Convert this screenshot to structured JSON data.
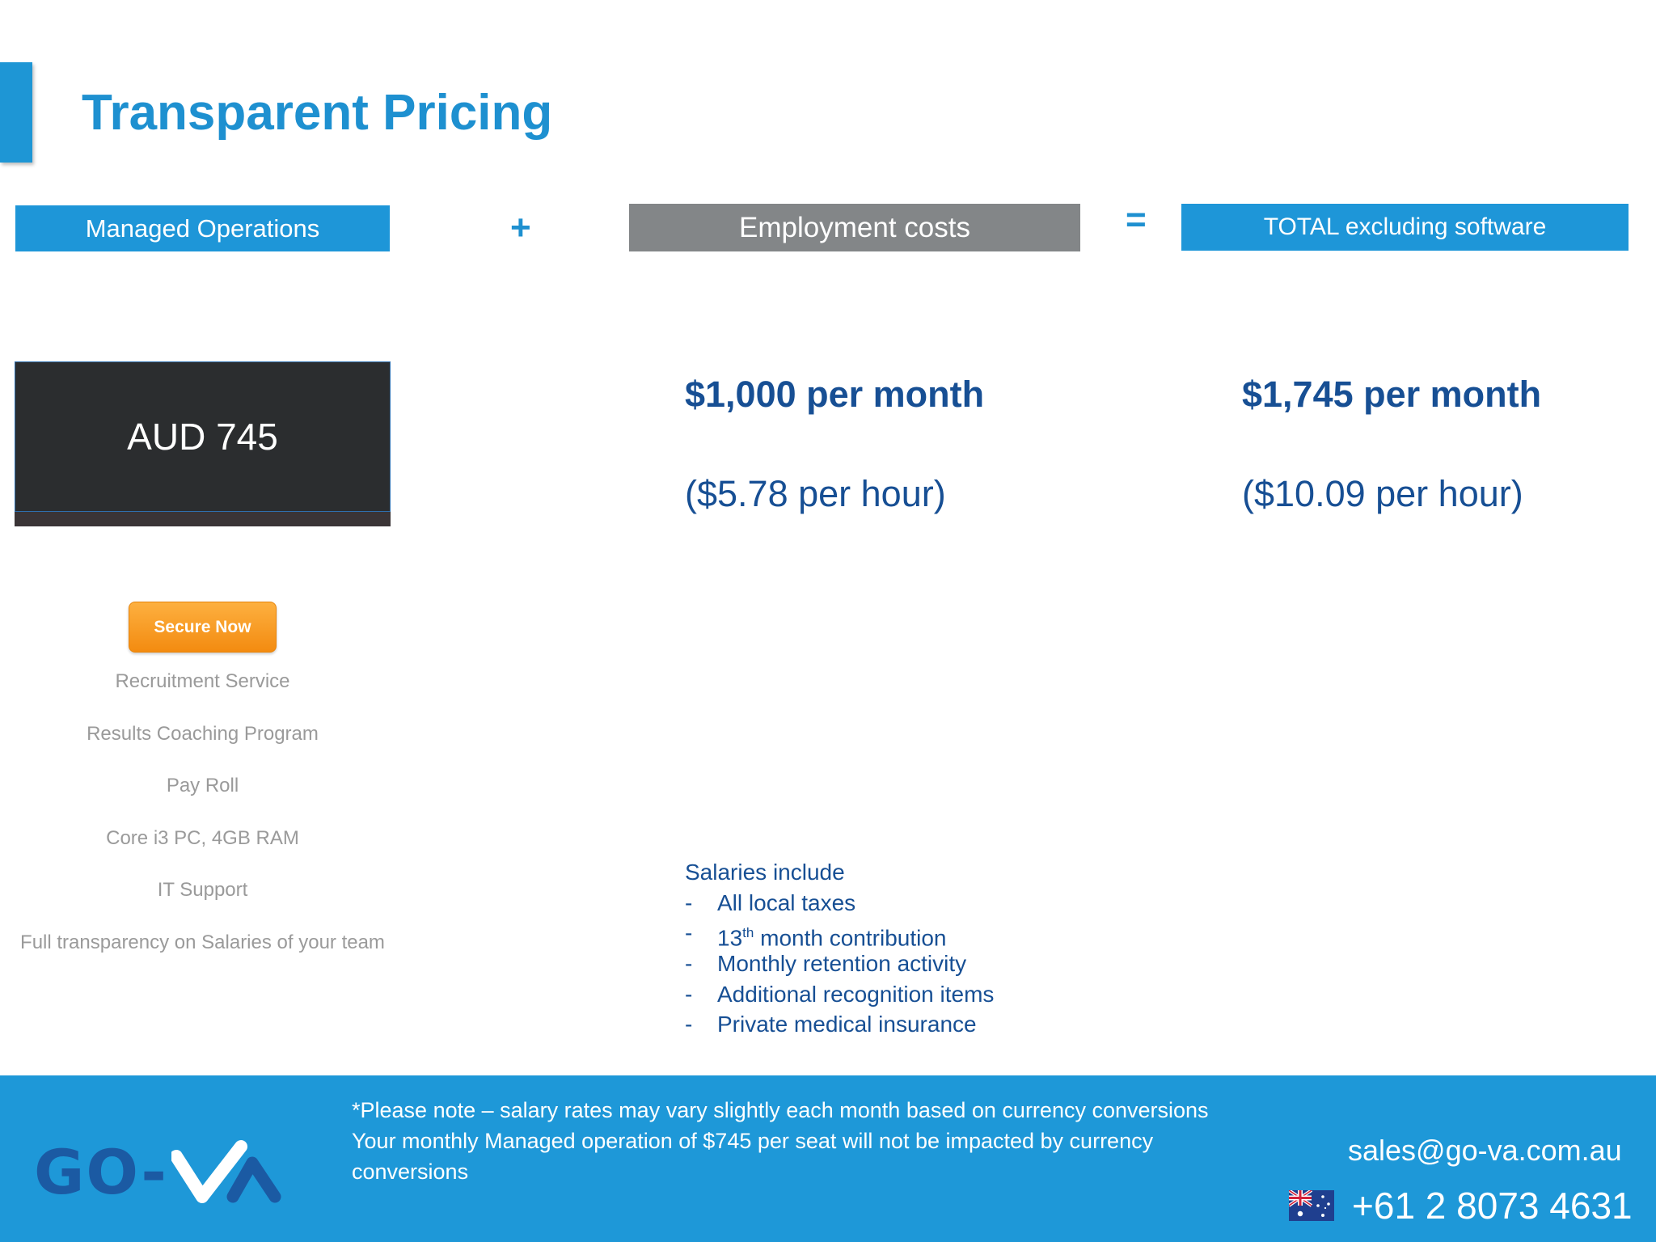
{
  "page": {
    "title": "Transparent Pricing"
  },
  "headers": {
    "managed": "Managed Operations",
    "plus": "+",
    "employment": "Employment costs",
    "equals": "=",
    "total": "TOTAL excluding software"
  },
  "managed_ops": {
    "price": "AUD 745",
    "cta": "Secure Now",
    "features": [
      "Recruitment Service",
      "Results Coaching Program",
      "Pay Roll",
      "Core i3 PC, 4GB RAM",
      "IT Support",
      "Full transparency on Salaries of your team"
    ]
  },
  "employment": {
    "monthly": "$1,000 per month",
    "hourly": "($5.78 per hour)"
  },
  "total": {
    "monthly": "$1,745 per month",
    "hourly": "($10.09 per hour)"
  },
  "salaries": {
    "heading": "Salaries include",
    "items": {
      "taxes": "All local taxes",
      "thirteenth_number": "13",
      "thirteenth_suffix": "th",
      "thirteenth_rest": " month contribution",
      "retention": "Monthly retention activity",
      "recognition": "Additional recognition items",
      "medical": "Private medical insurance"
    }
  },
  "footer": {
    "note_line1": "*Please note – salary rates may vary slightly each month based on currency conversions",
    "note_line2": "Your monthly Managed operation of $745 per seat will not be impacted by currency conversions",
    "logo_text": "GO-VA",
    "logo_prefix": "GO-",
    "email": "sales@go-va.com.au",
    "phone": "+61 2 8073 4631",
    "flag_icon": "australia-flag-icon"
  },
  "colors": {
    "brand_blue": "#1e96d8",
    "navy_text": "#174f94",
    "gray_header": "#838688",
    "dark_box": "#2b2d2f",
    "cta_orange": "#f7a123",
    "feature_gray": "#9a9a9a"
  }
}
